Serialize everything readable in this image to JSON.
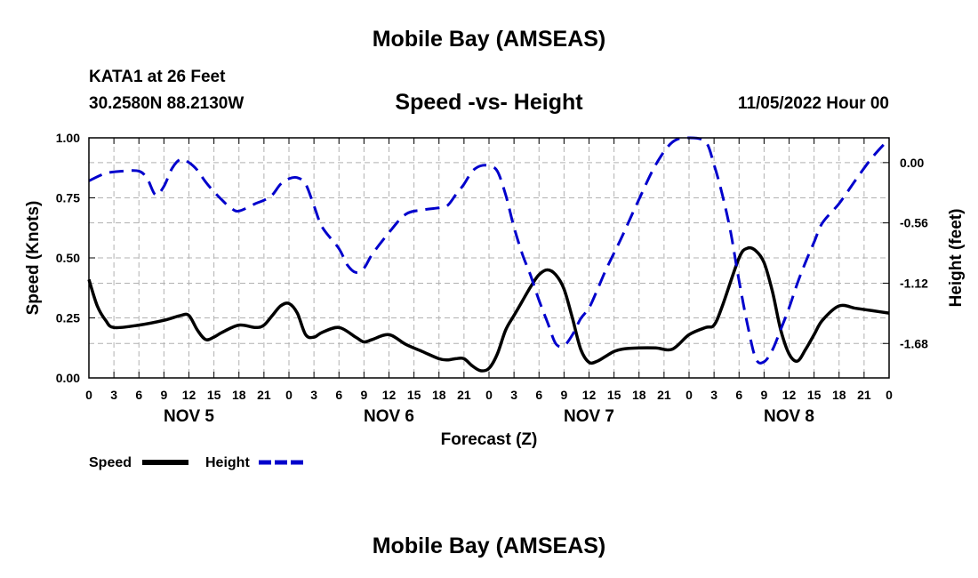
{
  "header": {
    "title": "Mobile Bay (AMSEAS)",
    "station": "KATA1 at 26 Feet",
    "coords": "30.2580N  88.2130W",
    "subtitle": "Speed -vs- Height",
    "datetime": "11/05/2022 Hour 00"
  },
  "footer": {
    "title": "Mobile Bay (AMSEAS)"
  },
  "colors": {
    "speed": "#000000",
    "height": "#0000cc",
    "grid": "#b0b0b0"
  },
  "chart_data": {
    "type": "line",
    "title": "Speed -vs- Height",
    "xlabel": "Forecast (Z)",
    "ylabel": "Speed (Knots)",
    "y2label": "Height (feet)",
    "xlim": [
      0,
      96
    ],
    "ylim": [
      0,
      1.0
    ],
    "y2lim": [
      -2.0,
      0.23
    ],
    "x_tick_labels": [
      "0",
      "3",
      "6",
      "9",
      "12",
      "15",
      "18",
      "21",
      "0",
      "3",
      "6",
      "9",
      "12",
      "15",
      "18",
      "21",
      "0",
      "3",
      "6",
      "9",
      "12",
      "15",
      "18",
      "21",
      "0",
      "3",
      "6",
      "9",
      "12",
      "15",
      "18",
      "21",
      "0"
    ],
    "day_labels": [
      {
        "label": "NOV 5",
        "x": 12
      },
      {
        "label": "NOV 6",
        "x": 36
      },
      {
        "label": "NOV 7",
        "x": 60
      },
      {
        "label": "NOV 8",
        "x": 84
      }
    ],
    "y_ticks": [
      "0.00",
      "0.25",
      "0.50",
      "0.75",
      "1.00"
    ],
    "y2_ticks": [
      "0.00",
      "-0.56",
      "-1.12",
      "-1.68"
    ],
    "grid": true,
    "legend": [
      {
        "name": "Speed",
        "style": "solid"
      },
      {
        "name": "Height",
        "style": "dashed"
      }
    ],
    "series": [
      {
        "name": "Speed",
        "axis": "left",
        "x": [
          0,
          1,
          2,
          3,
          6,
          9,
          11,
          12,
          13,
          14,
          15,
          16,
          18,
          20,
          21,
          22,
          23,
          24,
          25,
          26,
          27,
          28,
          30,
          32,
          33,
          34,
          36,
          38,
          40,
          42,
          43,
          44,
          45,
          46,
          47,
          48,
          49,
          50,
          51,
          52,
          53,
          54,
          55,
          56,
          57,
          58,
          59,
          60,
          61,
          62,
          63,
          64,
          66,
          68,
          70,
          72,
          74,
          75,
          76,
          78,
          79,
          80,
          81,
          82,
          83,
          84,
          85,
          86,
          87,
          88,
          90,
          92,
          94,
          96
        ],
        "values": [
          0.41,
          0.3,
          0.24,
          0.21,
          0.22,
          0.24,
          0.26,
          0.26,
          0.2,
          0.16,
          0.17,
          0.19,
          0.22,
          0.21,
          0.22,
          0.26,
          0.3,
          0.31,
          0.27,
          0.18,
          0.17,
          0.19,
          0.21,
          0.17,
          0.15,
          0.16,
          0.18,
          0.14,
          0.11,
          0.08,
          0.075,
          0.08,
          0.08,
          0.05,
          0.03,
          0.04,
          0.1,
          0.2,
          0.26,
          0.32,
          0.38,
          0.43,
          0.45,
          0.43,
          0.37,
          0.25,
          0.12,
          0.065,
          0.07,
          0.09,
          0.11,
          0.12,
          0.125,
          0.125,
          0.12,
          0.18,
          0.21,
          0.22,
          0.3,
          0.5,
          0.54,
          0.53,
          0.48,
          0.36,
          0.2,
          0.1,
          0.07,
          0.12,
          0.18,
          0.24,
          0.3,
          0.29,
          0.28,
          0.27
        ]
      },
      {
        "name": "Height",
        "axis": "right",
        "x": [
          0,
          2,
          4,
          6,
          7,
          8,
          9,
          10,
          11,
          12,
          13,
          14,
          15,
          16,
          17,
          18,
          20,
          21,
          22,
          23,
          24,
          25,
          26,
          27,
          28,
          30,
          31,
          32,
          33,
          34,
          36,
          38,
          40,
          42,
          43,
          44,
          45,
          46,
          47,
          48,
          49,
          50,
          51,
          52,
          53,
          54,
          55,
          56,
          57,
          58,
          59,
          60,
          61,
          62,
          63,
          64,
          66,
          68,
          70,
          72,
          74,
          75,
          76,
          77,
          78,
          79,
          80,
          81,
          82,
          83,
          84,
          85,
          86,
          87,
          88,
          90,
          92,
          94,
          96
        ],
        "values": [
          -0.17,
          -0.1,
          -0.08,
          -0.08,
          -0.15,
          -0.3,
          -0.22,
          -0.05,
          0.03,
          0.0,
          -0.07,
          -0.18,
          -0.27,
          -0.35,
          -0.42,
          -0.45,
          -0.38,
          -0.35,
          -0.3,
          -0.2,
          -0.15,
          -0.14,
          -0.2,
          -0.4,
          -0.6,
          -0.8,
          -0.95,
          -1.02,
          -0.98,
          -0.85,
          -0.65,
          -0.48,
          -0.44,
          -0.42,
          -0.4,
          -0.3,
          -0.2,
          -0.08,
          -0.03,
          -0.03,
          -0.08,
          -0.3,
          -0.6,
          -0.85,
          -1.05,
          -1.28,
          -1.48,
          -1.68,
          -1.7,
          -1.6,
          -1.45,
          -1.35,
          -1.18,
          -1.0,
          -0.84,
          -0.68,
          -0.34,
          -0.02,
          0.19,
          0.23,
          0.19,
          -0.02,
          -0.3,
          -0.65,
          -1.1,
          -1.5,
          -1.82,
          -1.85,
          -1.74,
          -1.55,
          -1.35,
          -1.12,
          -0.92,
          -0.74,
          -0.56,
          -0.38,
          -0.16,
          0.05,
          0.22
        ]
      }
    ]
  }
}
